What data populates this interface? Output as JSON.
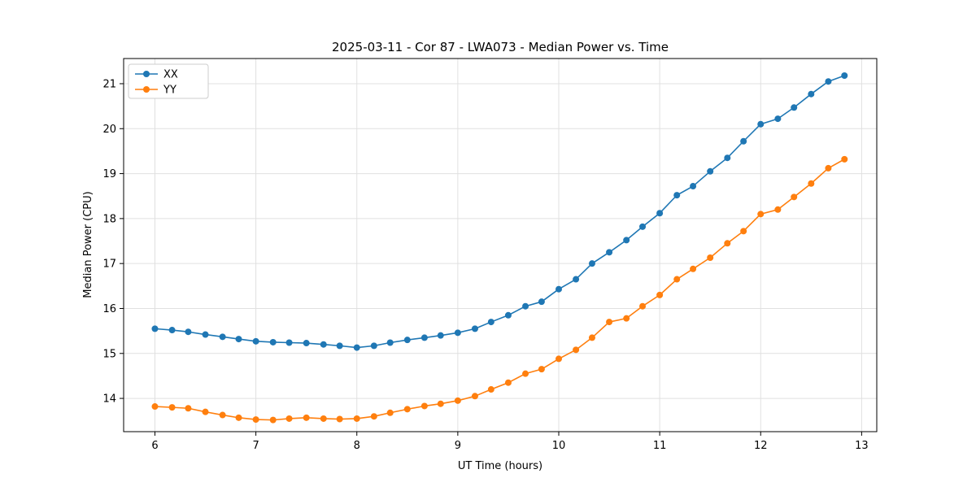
{
  "chart_data": {
    "type": "line",
    "title": "2025-03-11 - Cor 87 - LWA073 - Median Power vs. Time",
    "xlabel": "UT Time (hours)",
    "ylabel": "Median Power (CPU)",
    "xlim": [
      5.69,
      13.15
    ],
    "ylim": [
      13.26,
      21.56
    ],
    "xticks": [
      6,
      7,
      8,
      9,
      10,
      11,
      12,
      13
    ],
    "yticks": [
      14,
      15,
      16,
      17,
      18,
      19,
      20,
      21
    ],
    "grid": true,
    "legend_position": "upper-left",
    "grid_color": "#e0e0e0",
    "frame_color": "#000000",
    "x": [
      6.0,
      6.17,
      6.33,
      6.5,
      6.67,
      6.83,
      7.0,
      7.17,
      7.33,
      7.5,
      7.67,
      7.83,
      8.0,
      8.17,
      8.33,
      8.5,
      8.67,
      8.83,
      9.0,
      9.17,
      9.33,
      9.5,
      9.67,
      9.83,
      10.0,
      10.17,
      10.33,
      10.5,
      10.67,
      10.83,
      11.0,
      11.17,
      11.33,
      11.5,
      11.67,
      11.83,
      12.0,
      12.17,
      12.33,
      12.5,
      12.67,
      12.83
    ],
    "series": [
      {
        "name": "XX",
        "color": "#1f77b4",
        "marker": "circle",
        "values": [
          15.55,
          15.52,
          15.48,
          15.42,
          15.37,
          15.32,
          15.27,
          15.25,
          15.24,
          15.23,
          15.2,
          15.17,
          15.13,
          15.17,
          15.24,
          15.3,
          15.35,
          15.4,
          15.46,
          15.55,
          15.7,
          15.85,
          16.05,
          16.15,
          16.43,
          16.65,
          17.0,
          17.25,
          17.52,
          17.82,
          18.12,
          18.52,
          18.72,
          19.05,
          19.35,
          19.72,
          20.1,
          20.22,
          20.47,
          20.77,
          21.05,
          21.18
        ]
      },
      {
        "name": "YY",
        "color": "#ff7f0e",
        "marker": "circle",
        "values": [
          13.82,
          13.8,
          13.78,
          13.7,
          13.63,
          13.57,
          13.53,
          13.52,
          13.55,
          13.57,
          13.55,
          13.54,
          13.55,
          13.6,
          13.68,
          13.76,
          13.83,
          13.88,
          13.95,
          14.05,
          14.2,
          14.35,
          14.55,
          14.65,
          14.88,
          15.08,
          15.35,
          15.7,
          15.78,
          16.05,
          16.3,
          16.65,
          16.88,
          17.13,
          17.45,
          17.72,
          18.1,
          18.2,
          18.48,
          18.78,
          19.12,
          19.32
        ]
      }
    ]
  }
}
